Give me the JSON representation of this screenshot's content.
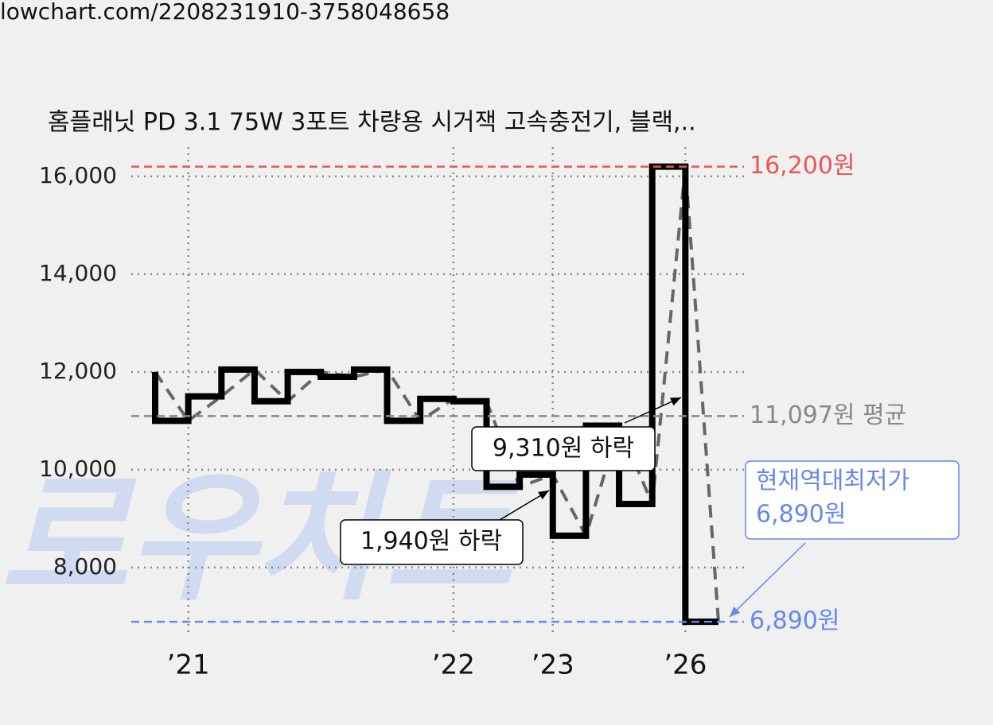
{
  "chart_data": {
    "type": "line",
    "source_url": "lowchart.com/2208231910-3758048658",
    "title": "홈플래닛 PD 3.1 75W 3포트 차량용 시거잭 고속충전기, 블랙,..",
    "watermark": "로우차트",
    "categories": [
      null,
      "’21",
      null,
      null,
      null,
      null,
      null,
      null,
      null,
      "’22",
      null,
      null,
      "’23",
      null,
      null,
      null,
      "’26",
      null
    ],
    "values": [
      12000,
      11000,
      11500,
      12050,
      11400,
      12000,
      11900,
      12050,
      11000,
      11450,
      11400,
      9650,
      9900,
      8650,
      10900,
      9300,
      16200,
      6890
    ],
    "color": "#000000",
    "trend_color": "#666666",
    "ylim": [
      6600,
      16600
    ],
    "yticks": [
      {
        "value": 8000,
        "label": "8,000"
      },
      {
        "value": 10000,
        "label": "10,000"
      },
      {
        "value": 12000,
        "label": "12,000"
      },
      {
        "value": 14000,
        "label": "14,000"
      },
      {
        "value": 16000,
        "label": "16,000"
      }
    ],
    "grid": true,
    "reference_lines": [
      {
        "value": 16200,
        "label": "16,200원",
        "color": "#ee5555"
      },
      {
        "value": 11097,
        "label": "11,097원 평균",
        "color": "#888888"
      },
      {
        "value": 6890,
        "label": "6,890원",
        "color": "#6688ee"
      }
    ],
    "annotations": [
      {
        "text": "9,310원 하락"
      },
      {
        "text": "1,940원 하락"
      },
      {
        "lines": [
          "현재역대최저가",
          "6,890원"
        ]
      }
    ]
  }
}
